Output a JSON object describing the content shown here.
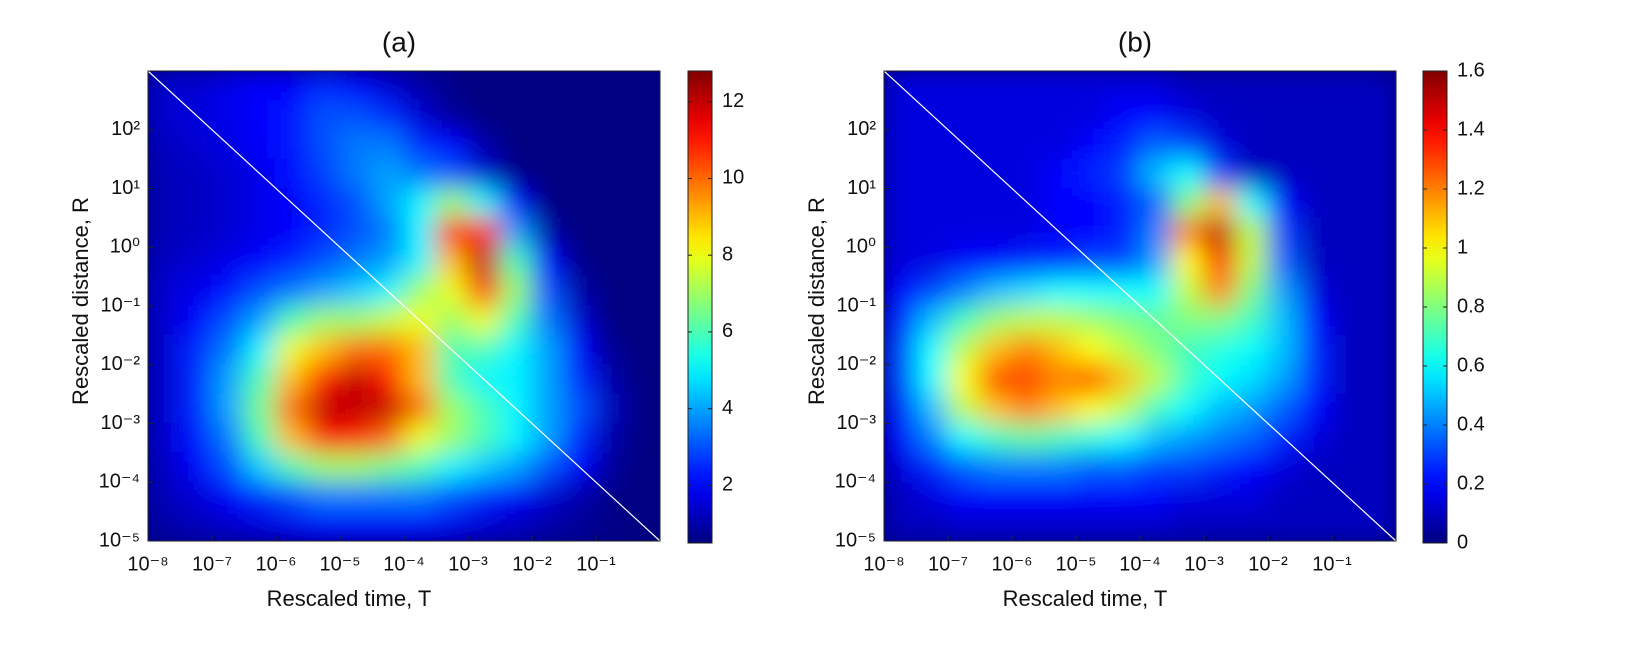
{
  "chart_data": [
    {
      "type": "heatmap",
      "title": "(a)",
      "xlabel": "Rescaled time, T",
      "ylabel": "Rescaled distance, R",
      "xscale": "log",
      "yscale": "log",
      "colormap": "jet",
      "xlim": [
        1e-08,
        1
      ],
      "ylim": [
        1e-05,
        1000
      ],
      "xticks": [
        {
          "value": 1e-08,
          "label": "10⁻⁸"
        },
        {
          "value": 1e-07,
          "label": "10⁻⁷"
        },
        {
          "value": 1e-06,
          "label": "10⁻⁶"
        },
        {
          "value": 1e-05,
          "label": "10⁻⁵"
        },
        {
          "value": 0.0001,
          "label": "10⁻⁴"
        },
        {
          "value": 0.001,
          "label": "10⁻³"
        },
        {
          "value": 0.01,
          "label": "10⁻²"
        },
        {
          "value": 0.1,
          "label": "10⁻¹"
        }
      ],
      "yticks": [
        {
          "value": 1e-05,
          "label": "10⁻⁵"
        },
        {
          "value": 0.0001,
          "label": "10⁻⁴"
        },
        {
          "value": 0.001,
          "label": "10⁻³"
        },
        {
          "value": 0.01,
          "label": "10⁻²"
        },
        {
          "value": 0.1,
          "label": "10⁻¹"
        },
        {
          "value": 1,
          "label": "10⁰"
        },
        {
          "value": 10,
          "label": "10¹"
        },
        {
          "value": 100,
          "label": "10²"
        }
      ],
      "clim": [
        0.5,
        12.8
      ],
      "cticks": [
        2,
        4,
        6,
        8,
        10,
        12
      ],
      "xbins": [
        1e-08,
        3.16e-08,
        1e-07,
        3.16e-07,
        1e-06,
        3.16e-06,
        1e-05,
        3.16e-05,
        0.0001,
        0.000316,
        0.001,
        0.00316,
        0.01,
        0.0316,
        0.1,
        0.316,
        1
      ],
      "ybins": [
        1000,
        316,
        100,
        31.6,
        10,
        3.16,
        1,
        0.316,
        0.1,
        0.0316,
        0.01,
        0.00316,
        0.001,
        0.000316,
        0.0001,
        3.16e-05,
        1e-05
      ],
      "z": [
        [
          1.5,
          1.5,
          1.8,
          2,
          2,
          2.5,
          2,
          1.5,
          1,
          0.6,
          0.5,
          0.5,
          0.5,
          0.5,
          0.5,
          0.5
        ],
        [
          1.5,
          1.6,
          1.8,
          2,
          2.3,
          3,
          3,
          2.5,
          1.5,
          0.8,
          0.5,
          0.5,
          0.5,
          0.5,
          0.5,
          0.5
        ],
        [
          1.3,
          1.5,
          1.7,
          2,
          2.3,
          3,
          3.5,
          3.5,
          2.5,
          2,
          1,
          0.5,
          0.5,
          0.5,
          0.5,
          0.5
        ],
        [
          1.2,
          1.3,
          1.5,
          1.8,
          2.2,
          2.8,
          3.5,
          4,
          3.5,
          3,
          1.5,
          0.6,
          0.5,
          0.5,
          0.5,
          0.5
        ],
        [
          1.2,
          1.3,
          1.5,
          1.8,
          2,
          2.5,
          3,
          4,
          5,
          7,
          5,
          2,
          0.5,
          0.5,
          0.5,
          0.5
        ],
        [
          1.2,
          1.3,
          1.5,
          1.8,
          2,
          2.5,
          3,
          3.5,
          5,
          11,
          11,
          4,
          1,
          0.5,
          0.5,
          0.5
        ],
        [
          1.3,
          1.5,
          1.8,
          2,
          2.5,
          3,
          3.5,
          4,
          5,
          9,
          12,
          6,
          2,
          0.6,
          0.5,
          0.5
        ],
        [
          1.5,
          1.8,
          2.2,
          3,
          3.5,
          4,
          4.5,
          5,
          7,
          8,
          11,
          7,
          3,
          1,
          0.5,
          0.5
        ],
        [
          1.5,
          2,
          3,
          4,
          6,
          7,
          7,
          7.5,
          8,
          7,
          8,
          6,
          3.5,
          1.5,
          0.5,
          0.5
        ],
        [
          1.5,
          2.5,
          3.5,
          5,
          8,
          9,
          10,
          10,
          9,
          6,
          6,
          5,
          4,
          2,
          0.7,
          0.5
        ],
        [
          1.5,
          2.5,
          4,
          6,
          9,
          11,
          12,
          11,
          9,
          6,
          5,
          5,
          4,
          2.5,
          1,
          0.5
        ],
        [
          1.5,
          2.5,
          4,
          6.5,
          10,
          12,
          12,
          12,
          10,
          7,
          6,
          5,
          4,
          3,
          1.2,
          0.5
        ],
        [
          1.5,
          2.3,
          3.5,
          6,
          9,
          11,
          11,
          10,
          8,
          7,
          6,
          5,
          4,
          2.5,
          1,
          0.5
        ],
        [
          1.3,
          2,
          3,
          4.5,
          6,
          7,
          7,
          6.5,
          6,
          5,
          4.5,
          4,
          3,
          2,
          0.8,
          0.5
        ],
        [
          1.2,
          1.5,
          2,
          2.5,
          3,
          3.5,
          3.5,
          3.5,
          3.5,
          3,
          2.5,
          2,
          1.5,
          1,
          0.6,
          0.5
        ],
        [
          1,
          1.2,
          1.4,
          1.6,
          1.8,
          2,
          2,
          2,
          2,
          1.8,
          1.5,
          1.3,
          1,
          0.8,
          0.6,
          0.5
        ]
      ]
    },
    {
      "type": "heatmap",
      "title": "(b)",
      "xlabel": "Rescaled time, T",
      "ylabel": "Rescaled distance, R",
      "xscale": "log",
      "yscale": "log",
      "colormap": "jet",
      "xlim": [
        1e-08,
        1
      ],
      "ylim": [
        1e-05,
        1000
      ],
      "xticks": [
        {
          "value": 1e-08,
          "label": "10⁻⁸"
        },
        {
          "value": 1e-07,
          "label": "10⁻⁷"
        },
        {
          "value": 1e-06,
          "label": "10⁻⁶"
        },
        {
          "value": 1e-05,
          "label": "10⁻⁵"
        },
        {
          "value": 0.0001,
          "label": "10⁻⁴"
        },
        {
          "value": 0.001,
          "label": "10⁻³"
        },
        {
          "value": 0.01,
          "label": "10⁻²"
        },
        {
          "value": 0.1,
          "label": "10⁻¹"
        }
      ],
      "yticks": [
        {
          "value": 1e-05,
          "label": "10⁻⁵"
        },
        {
          "value": 0.0001,
          "label": "10⁻⁴"
        },
        {
          "value": 0.001,
          "label": "10⁻³"
        },
        {
          "value": 0.01,
          "label": "10⁻²"
        },
        {
          "value": 0.1,
          "label": "10⁻¹"
        },
        {
          "value": 1,
          "label": "10⁰"
        },
        {
          "value": 10,
          "label": "10¹"
        },
        {
          "value": 100,
          "label": "10²"
        }
      ],
      "clim": [
        0,
        1.6
      ],
      "cticks": [
        0,
        0.2,
        0.4,
        0.6,
        0.8,
        1,
        1.2,
        1.4,
        1.6
      ],
      "xbins": [
        1e-08,
        3.16e-08,
        1e-07,
        3.16e-07,
        1e-06,
        3.16e-06,
        1e-05,
        3.16e-05,
        0.0001,
        0.000316,
        0.001,
        0.00316,
        0.01,
        0.0316,
        0.1,
        0.316,
        1
      ],
      "ybins": [
        1000,
        316,
        100,
        31.6,
        10,
        3.16,
        1,
        0.316,
        0.1,
        0.0316,
        0.01,
        0.00316,
        0.001,
        0.000316,
        0.0001,
        3.16e-05,
        1e-05
      ],
      "z": [
        [
          0.15,
          0.15,
          0.15,
          0.15,
          0.15,
          0.15,
          0.15,
          0.15,
          0.15,
          0.1,
          0.1,
          0.1,
          0.1,
          0.1,
          0.1,
          0.1
        ],
        [
          0.15,
          0.15,
          0.15,
          0.15,
          0.15,
          0.15,
          0.15,
          0.2,
          0.2,
          0.15,
          0.1,
          0.1,
          0.1,
          0.1,
          0.1,
          0.1
        ],
        [
          0.15,
          0.15,
          0.15,
          0.15,
          0.15,
          0.15,
          0.2,
          0.25,
          0.35,
          0.3,
          0.15,
          0.1,
          0.1,
          0.1,
          0.1,
          0.1
        ],
        [
          0.15,
          0.15,
          0.15,
          0.15,
          0.15,
          0.2,
          0.25,
          0.3,
          0.5,
          0.6,
          0.3,
          0.1,
          0.1,
          0.1,
          0.1,
          0.1
        ],
        [
          0.15,
          0.15,
          0.15,
          0.15,
          0.15,
          0.2,
          0.2,
          0.25,
          0.35,
          0.8,
          1.1,
          0.6,
          0.2,
          0.1,
          0.1,
          0.1
        ],
        [
          0.15,
          0.15,
          0.15,
          0.15,
          0.15,
          0.2,
          0.2,
          0.25,
          0.4,
          1.2,
          1.5,
          0.9,
          0.3,
          0.1,
          0.1,
          0.1
        ],
        [
          0.15,
          0.15,
          0.2,
          0.2,
          0.25,
          0.25,
          0.3,
          0.3,
          0.45,
          1,
          1.4,
          0.9,
          0.35,
          0.1,
          0.1,
          0.1
        ],
        [
          0.2,
          0.3,
          0.4,
          0.5,
          0.55,
          0.6,
          0.6,
          0.6,
          0.6,
          0.9,
          1.2,
          0.8,
          0.45,
          0.15,
          0.1,
          0.1
        ],
        [
          0.25,
          0.5,
          0.7,
          0.85,
          0.9,
          0.9,
          0.85,
          0.8,
          0.75,
          0.8,
          0.8,
          0.7,
          0.5,
          0.2,
          0.1,
          0.1
        ],
        [
          0.3,
          0.6,
          0.9,
          1.1,
          1.2,
          1.1,
          1,
          0.9,
          0.8,
          0.7,
          0.65,
          0.6,
          0.5,
          0.25,
          0.1,
          0.1
        ],
        [
          0.3,
          0.6,
          1,
          1.3,
          1.3,
          1.2,
          1.3,
          1.1,
          0.9,
          0.7,
          0.6,
          0.55,
          0.45,
          0.25,
          0.1,
          0.1
        ],
        [
          0.25,
          0.5,
          0.9,
          1.1,
          1.2,
          1.1,
          1,
          0.9,
          0.7,
          0.6,
          0.5,
          0.45,
          0.35,
          0.2,
          0.1,
          0.1
        ],
        [
          0.2,
          0.4,
          0.6,
          0.7,
          0.75,
          0.7,
          0.65,
          0.6,
          0.5,
          0.45,
          0.4,
          0.35,
          0.25,
          0.15,
          0.1,
          0.1
        ],
        [
          0.15,
          0.25,
          0.35,
          0.4,
          0.4,
          0.4,
          0.35,
          0.35,
          0.3,
          0.3,
          0.25,
          0.2,
          0.15,
          0.1,
          0.1,
          0.1
        ],
        [
          0.1,
          0.15,
          0.2,
          0.2,
          0.2,
          0.2,
          0.2,
          0.2,
          0.2,
          0.15,
          0.15,
          0.15,
          0.1,
          0.1,
          0.1,
          0.1
        ],
        [
          0.1,
          0.1,
          0.12,
          0.12,
          0.12,
          0.12,
          0.12,
          0.12,
          0.12,
          0.1,
          0.1,
          0.1,
          0.1,
          0.1,
          0.1,
          0.1
        ]
      ]
    }
  ]
}
